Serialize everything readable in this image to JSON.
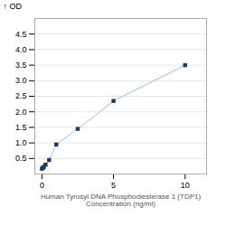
{
  "chart_data": {
    "type": "line",
    "x": [
      0,
      0.0625,
      0.125,
      0.25,
      0.5,
      1,
      2.5,
      5,
      10
    ],
    "values": [
      0.17,
      0.2,
      0.23,
      0.3,
      0.45,
      0.95,
      1.45,
      2.35,
      3.5
    ],
    "xlabel": "Human Tyrosyl DNA Phosphodiesterase 1 (TDP1)\nConcentration (ng/ml)",
    "ylabel": "OD",
    "xlim": [
      -0.5,
      11.5
    ],
    "ylim": [
      0,
      5.0
    ],
    "xticks": [
      0,
      5,
      10
    ],
    "yticks": [
      0.5,
      {
        "value": 1.0,
        "label": "1.0"
      },
      1.5,
      {
        "value": 2.0,
        "label": "2.0"
      },
      2.5,
      {
        "value": 3.0,
        "label": "3.0"
      },
      3.5,
      {
        "value": 4.0,
        "label": "4.0"
      },
      4.5
    ],
    "color": "#b8d0e0",
    "colors": [
      "#1a3a6b",
      "#1a3a6b",
      "#1a3a6b",
      "#1a3a6b",
      "#1a3a6b",
      "#1a3a6b",
      "#1a3a6b",
      "#1a3a6b",
      "#1a3a6b"
    ],
    "marker": "square",
    "grid": true
  }
}
